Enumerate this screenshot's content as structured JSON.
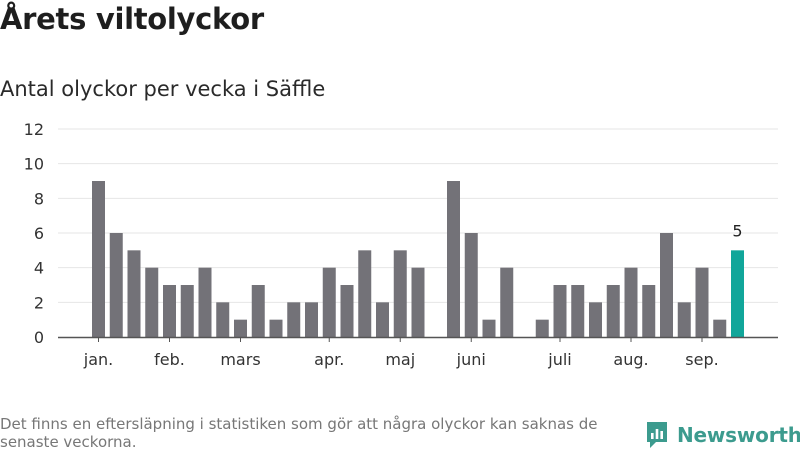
{
  "title": "Årets viltolyckor",
  "subtitle": "Antal olyckor per vecka i Säffle",
  "footnote": "Det finns en eftersläpning i statistiken som gör att några olyckor kan saknas de senaste veckorna.",
  "brand": {
    "name": "Newsworthy",
    "icon": "newsworthy-logo-icon"
  },
  "colors": {
    "bar": "#737278",
    "highlight": "#11a69a",
    "grid": "#e6e6e6",
    "axis": "#555555",
    "brand": "#3c9b8e"
  },
  "chart_data": {
    "type": "bar",
    "title": "",
    "xlabel": "",
    "ylabel": "",
    "ylim": [
      0,
      12
    ],
    "yticks": [
      0,
      2,
      4,
      6,
      8,
      10,
      12
    ],
    "grid": true,
    "week_labels": [
      "jan.",
      "",
      "",
      "",
      "feb.",
      "",
      "",
      "",
      "mars",
      "",
      "",
      "",
      "",
      "apr.",
      "",
      "",
      "",
      "maj",
      "",
      "",
      "",
      "juni",
      "",
      "",
      "",
      "",
      "juli",
      "",
      "",
      "",
      "aug.",
      "",
      "",
      "",
      "sep.",
      "",
      ""
    ],
    "values": [
      9,
      6,
      5,
      4,
      3,
      3,
      4,
      2,
      1,
      3,
      1,
      2,
      2,
      4,
      3,
      5,
      2,
      5,
      4,
      0,
      9,
      6,
      1,
      4,
      0,
      1,
      3,
      3,
      2,
      3,
      4,
      3,
      6,
      2,
      4,
      1,
      5
    ],
    "highlight_index": 36,
    "annotations": [
      {
        "index": 36,
        "text": "5"
      }
    ]
  }
}
